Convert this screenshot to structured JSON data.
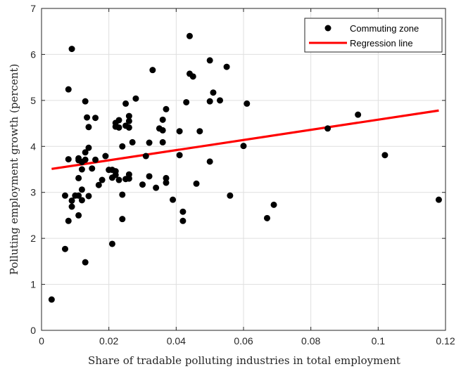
{
  "chart_data": {
    "type": "scatter",
    "xlabel": "Share of tradable polluting industries in total employment",
    "ylabel": "Polluting employment growth (percent)",
    "xlim": [
      0,
      0.12
    ],
    "ylim": [
      0,
      7
    ],
    "xticks": [
      0,
      0.02,
      0.04,
      0.06,
      0.08,
      0.1,
      0.12
    ],
    "xtick_labels": [
      "0",
      "0.02",
      "0.04",
      "0.06",
      "0.08",
      "0.1",
      "0.12"
    ],
    "yticks": [
      0,
      1,
      2,
      3,
      4,
      5,
      6,
      7
    ],
    "ytick_labels": [
      "0",
      "1",
      "2",
      "3",
      "4",
      "5",
      "6",
      "7"
    ],
    "grid": true,
    "legend_position": "top-right",
    "colors": {
      "points": "#000000",
      "regression": "#ff0000"
    },
    "series": [
      {
        "name": "Commuting zone",
        "kind": "scatter",
        "points": [
          [
            0.003,
            0.67
          ],
          [
            0.007,
            1.77
          ],
          [
            0.007,
            2.93
          ],
          [
            0.008,
            2.38
          ],
          [
            0.008,
            3.72
          ],
          [
            0.008,
            5.24
          ],
          [
            0.009,
            6.12
          ],
          [
            0.009,
            2.82
          ],
          [
            0.009,
            2.69
          ],
          [
            0.01,
            2.93
          ],
          [
            0.011,
            2.93
          ],
          [
            0.011,
            3.74
          ],
          [
            0.011,
            3.7
          ],
          [
            0.011,
            2.5
          ],
          [
            0.011,
            3.31
          ],
          [
            0.012,
            3.5
          ],
          [
            0.012,
            3.06
          ],
          [
            0.012,
            3.66
          ],
          [
            0.012,
            2.83
          ],
          [
            0.013,
            3.87
          ],
          [
            0.013,
            3.71
          ],
          [
            0.013,
            4.98
          ],
          [
            0.013,
            1.48
          ],
          [
            0.0135,
            4.63
          ],
          [
            0.014,
            4.42
          ],
          [
            0.014,
            3.97
          ],
          [
            0.014,
            2.92
          ],
          [
            0.015,
            3.52
          ],
          [
            0.016,
            4.62
          ],
          [
            0.016,
            3.71
          ],
          [
            0.017,
            3.16
          ],
          [
            0.018,
            3.27
          ],
          [
            0.019,
            3.79
          ],
          [
            0.02,
            3.49
          ],
          [
            0.021,
            3.32
          ],
          [
            0.021,
            3.49
          ],
          [
            0.021,
            1.88
          ],
          [
            0.022,
            4.51
          ],
          [
            0.022,
            4.43
          ],
          [
            0.022,
            3.46
          ],
          [
            0.022,
            3.38
          ],
          [
            0.023,
            4.57
          ],
          [
            0.023,
            4.41
          ],
          [
            0.023,
            3.27
          ],
          [
            0.024,
            4.0
          ],
          [
            0.024,
            2.95
          ],
          [
            0.024,
            2.42
          ],
          [
            0.025,
            4.45
          ],
          [
            0.025,
            4.93
          ],
          [
            0.025,
            3.29
          ],
          [
            0.026,
            4.66
          ],
          [
            0.026,
            4.55
          ],
          [
            0.026,
            4.41
          ],
          [
            0.026,
            3.39
          ],
          [
            0.026,
            3.3
          ],
          [
            0.027,
            4.09
          ],
          [
            0.028,
            5.04
          ],
          [
            0.03,
            3.17
          ],
          [
            0.031,
            3.79
          ],
          [
            0.032,
            3.35
          ],
          [
            0.032,
            4.08
          ],
          [
            0.033,
            5.66
          ],
          [
            0.034,
            3.1
          ],
          [
            0.035,
            4.39
          ],
          [
            0.036,
            4.35
          ],
          [
            0.036,
            4.09
          ],
          [
            0.036,
            4.58
          ],
          [
            0.037,
            3.31
          ],
          [
            0.037,
            4.81
          ],
          [
            0.037,
            3.21
          ],
          [
            0.039,
            2.84
          ],
          [
            0.041,
            4.33
          ],
          [
            0.041,
            3.81
          ],
          [
            0.042,
            2.38
          ],
          [
            0.042,
            2.58
          ],
          [
            0.043,
            4.96
          ],
          [
            0.044,
            5.58
          ],
          [
            0.044,
            6.4
          ],
          [
            0.045,
            5.52
          ],
          [
            0.046,
            3.19
          ],
          [
            0.047,
            4.33
          ],
          [
            0.05,
            5.87
          ],
          [
            0.05,
            4.98
          ],
          [
            0.05,
            3.67
          ],
          [
            0.051,
            5.17
          ],
          [
            0.053,
            5.0
          ],
          [
            0.055,
            5.73
          ],
          [
            0.056,
            2.93
          ],
          [
            0.06,
            4.01
          ],
          [
            0.061,
            4.93
          ],
          [
            0.067,
            2.44
          ],
          [
            0.069,
            2.73
          ],
          [
            0.085,
            4.39
          ],
          [
            0.094,
            4.69
          ],
          [
            0.102,
            3.81
          ],
          [
            0.118,
            2.84
          ]
        ]
      },
      {
        "name": "Regression line",
        "kind": "line",
        "x": [
          0.003,
          0.118
        ],
        "y": [
          3.51,
          4.78
        ]
      }
    ]
  }
}
